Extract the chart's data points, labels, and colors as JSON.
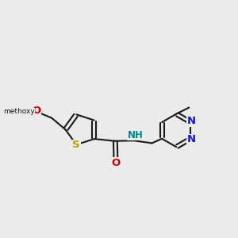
{
  "bg": "#ebebeb",
  "bc": "#1a1a1a",
  "S_color": "#b8a000",
  "N_color": "#1414cc",
  "O_color": "#cc0000",
  "NH_color": "#008b8b",
  "lw": 1.5,
  "fs": 8.5,
  "figsize": [
    3.0,
    3.0
  ],
  "dpi": 100,
  "xlim": [
    -1.0,
    9.5
  ],
  "ylim": [
    -1.5,
    5.5
  ]
}
